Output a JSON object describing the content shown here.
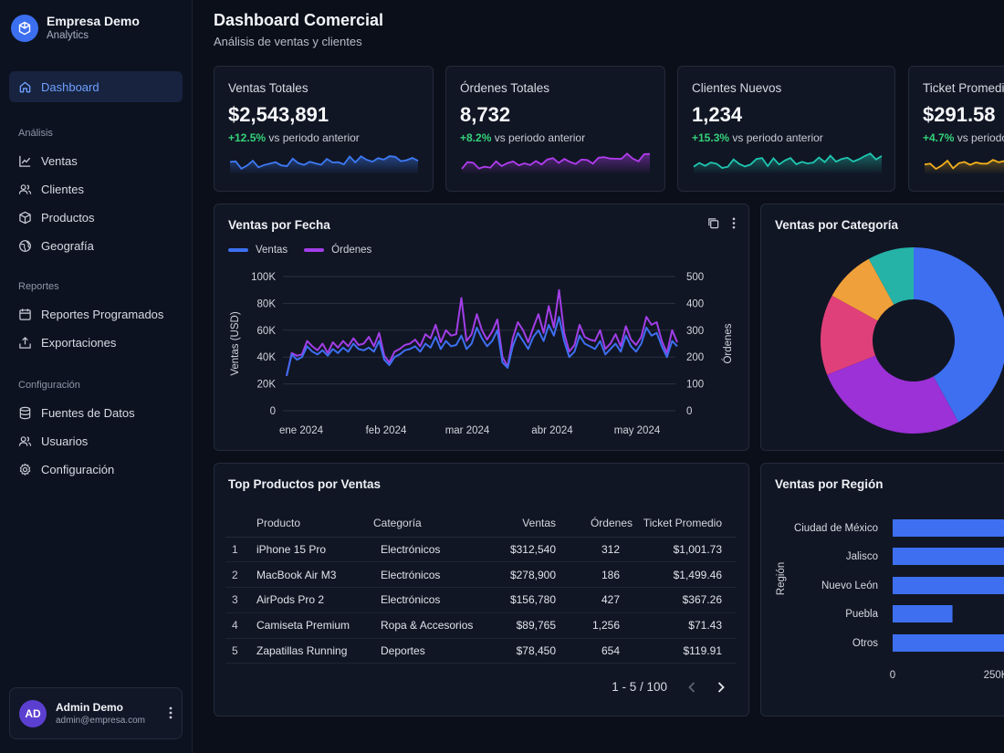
{
  "brand": {
    "name": "Empresa Demo",
    "sub": "Analytics"
  },
  "nav": {
    "dashboard": "Dashboard",
    "section_analisis": "Análisis",
    "ventas": "Ventas",
    "clientes": "Clientes",
    "productos": "Productos",
    "geografia": "Geografía",
    "section_reportes": "Reportes",
    "reportes_programados": "Reportes Programados",
    "exportaciones": "Exportaciones",
    "section_config": "Configuración",
    "fuentes": "Fuentes de Datos",
    "usuarios": "Usuarios",
    "configuracion": "Configuración"
  },
  "user": {
    "initials": "AD",
    "name": "Admin Demo",
    "email": "admin@empresa.com"
  },
  "header": {
    "title": "Dashboard Comercial",
    "subtitle": "Análisis de ventas y clientes"
  },
  "kpis": [
    {
      "label": "Ventas Totales",
      "value": "$2,543,891",
      "delta": "+12.5%",
      "delta_text": "vs periodo anterior",
      "color": "#3d7af5"
    },
    {
      "label": "Órdenes Totales",
      "value": "8,732",
      "delta": "+8.2%",
      "delta_text": "vs periodo anterior",
      "color": "#b23cf0"
    },
    {
      "label": "Clientes Nuevos",
      "value": "1,234",
      "delta": "+15.3%",
      "delta_text": "vs periodo anterior",
      "color": "#1fc6b0"
    },
    {
      "label": "Ticket Promedio",
      "value": "$291.58",
      "delta": "+4.7%",
      "delta_text": "vs periodo anterior",
      "color": "#f2b01c"
    }
  ],
  "chart_fecha": {
    "title": "Ventas por Fecha",
    "legend_ventas": "Ventas",
    "legend_ordenes": "Órdenes",
    "ylabel_left": "Ventas (USD)",
    "ylabel_right": "Órdenes",
    "color_ventas": "#3d6ff0",
    "color_ordenes": "#a23ee8"
  },
  "chart_categoria": {
    "title": "Ventas por Categoría"
  },
  "chart_region": {
    "title": "Ventas por Región",
    "ylabel": "Región"
  },
  "table": {
    "title": "Top Productos por Ventas",
    "columns": [
      "Producto",
      "Categoría",
      "Ventas",
      "Órdenes",
      "Ticket Promedio"
    ],
    "rows": [
      {
        "idx": "1",
        "producto": "iPhone 15 Pro",
        "categoria": "Electrónicos",
        "ventas": "$312,540",
        "ordenes": "312",
        "ticket": "$1,001.73"
      },
      {
        "idx": "2",
        "producto": "MacBook Air M3",
        "categoria": "Electrónicos",
        "ventas": "$278,900",
        "ordenes": "186",
        "ticket": "$1,499.46"
      },
      {
        "idx": "3",
        "producto": "AirPods Pro 2",
        "categoria": "Electrónicos",
        "ventas": "$156,780",
        "ordenes": "427",
        "ticket": "$367.26"
      },
      {
        "idx": "4",
        "producto": "Camiseta Premium",
        "categoria": "Ropa & Accesorios",
        "ventas": "$89,765",
        "ordenes": "1,256",
        "ticket": "$71.43"
      },
      {
        "idx": "5",
        "producto": "Zapatillas Running",
        "categoria": "Deportes",
        "ventas": "$78,450",
        "ordenes": "654",
        "ticket": "$119.91"
      }
    ],
    "pager": "1 - 5 / 100"
  },
  "chart_data": [
    {
      "type": "line",
      "title": "Ventas por Fecha",
      "xlabel": "",
      "ylabel": "Ventas (USD)",
      "y2label": "Órdenes",
      "ylim": [
        0,
        100000
      ],
      "y2lim": [
        0,
        500
      ],
      "yticks": [
        "0",
        "20K",
        "40K",
        "60K",
        "80K",
        "100K"
      ],
      "y2ticks": [
        "0",
        "100",
        "200",
        "300",
        "400",
        "500"
      ],
      "xticks": [
        "ene 2024",
        "feb 2024",
        "mar 2024",
        "abr 2024",
        "may 2024"
      ],
      "legend": "top-left",
      "grid": true,
      "series": [
        {
          "name": "Ventas",
          "axis": "left",
          "values": [
            26000,
            42000,
            38000,
            40000,
            48000,
            44000,
            42000,
            45000,
            41000,
            46000,
            43000,
            47000,
            44000,
            50000,
            46000,
            45000,
            47000,
            44000,
            52000,
            38000,
            34000,
            40000,
            42000,
            45000,
            46000,
            48000,
            44000,
            50000,
            47000,
            55000,
            46000,
            52000,
            48000,
            49000,
            56000,
            46000,
            50000,
            62000,
            54000,
            48000,
            52000,
            60000,
            36000,
            32000,
            48000,
            58000,
            52000,
            46000,
            55000,
            60000,
            52000,
            64000,
            56000,
            70000,
            52000,
            40000,
            44000,
            56000,
            50000,
            48000,
            46000,
            52000,
            42000,
            46000,
            50000,
            44000,
            56000,
            48000,
            44000,
            50000,
            62000,
            56000,
            58000,
            48000,
            40000,
            52000,
            48000
          ]
        },
        {
          "name": "Órdenes",
          "axis": "right",
          "values": [
            130,
            215,
            205,
            210,
            260,
            240,
            225,
            250,
            215,
            255,
            235,
            260,
            240,
            270,
            245,
            250,
            275,
            240,
            290,
            205,
            180,
            220,
            230,
            245,
            250,
            265,
            240,
            285,
            270,
            320,
            255,
            300,
            280,
            285,
            420,
            260,
            285,
            360,
            300,
            265,
            295,
            340,
            200,
            165,
            270,
            330,
            300,
            255,
            310,
            360,
            290,
            390,
            310,
            450,
            290,
            220,
            245,
            320,
            275,
            265,
            260,
            300,
            230,
            250,
            285,
            240,
            315,
            265,
            245,
            275,
            350,
            320,
            330,
            260,
            215,
            300,
            255
          ]
        }
      ]
    },
    {
      "type": "pie",
      "title": "Ventas por Categoría",
      "donut": true,
      "slices": [
        {
          "color": "#3d6ff0",
          "value": 42
        },
        {
          "color": "#9b31d6",
          "value": 27
        },
        {
          "color": "#e0407a",
          "value": 14
        },
        {
          "color": "#f0a03a",
          "value": 9
        },
        {
          "color": "#25b3a8",
          "value": 8
        }
      ]
    },
    {
      "type": "bar",
      "orientation": "horizontal",
      "title": "Ventas por Región",
      "ylabel": "Región",
      "categories": [
        "Ciudad de México",
        "Jalisco",
        "Nuevo León",
        "Puebla",
        "Otros"
      ],
      "values": [
        320000,
        310000,
        305000,
        145000,
        330000
      ],
      "xticks": [
        "0",
        "250K"
      ],
      "xlim": [
        0,
        500000
      ],
      "color": "#3d6ff0"
    }
  ]
}
